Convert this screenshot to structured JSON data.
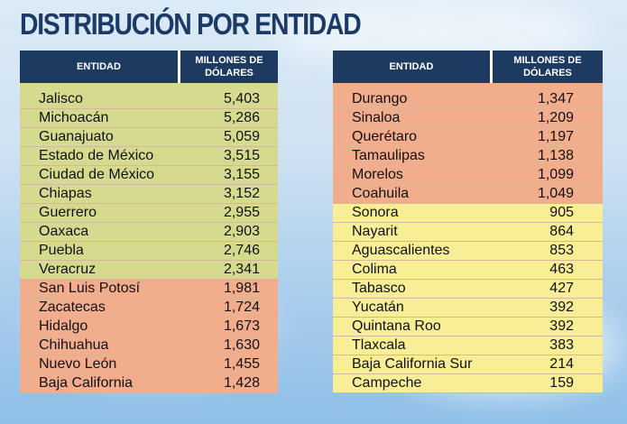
{
  "title": "DISTRIBUCIÓN POR ENTIDAD",
  "header": {
    "state_label": "ENTIDAD",
    "value_label_line1": "MILLONES DE",
    "value_label_line2": "DÓLARES"
  },
  "colors": {
    "header": "#1d3b61",
    "green": "#d6da8e",
    "salmon": "#f2ad8c",
    "yellow": "#f7ee96",
    "title": "#1c3a66"
  },
  "left_rows": [
    {
      "state": "Jalisco",
      "value": "5,403",
      "color": "green"
    },
    {
      "state": "Michoacán",
      "value": "5,286",
      "color": "green"
    },
    {
      "state": "Guanajuato",
      "value": "5,059",
      "color": "green"
    },
    {
      "state": "Estado de México",
      "value": "3,515",
      "color": "green"
    },
    {
      "state": "Ciudad de México",
      "value": "3,155",
      "color": "green"
    },
    {
      "state": "Chiapas",
      "value": "3,152",
      "color": "green"
    },
    {
      "state": "Guerrero",
      "value": "2,955",
      "color": "green"
    },
    {
      "state": "Oaxaca",
      "value": "2,903",
      "color": "green"
    },
    {
      "state": "Puebla",
      "value": "2,746",
      "color": "green"
    },
    {
      "state": "Veracruz",
      "value": "2,341",
      "color": "green"
    },
    {
      "state": "San Luis Potosí",
      "value": "1,981",
      "color": "salmon"
    },
    {
      "state": "Zacatecas",
      "value": "1,724",
      "color": "salmon"
    },
    {
      "state": "Hidalgo",
      "value": "1,673",
      "color": "salmon"
    },
    {
      "state": "Chihuahua",
      "value": "1,630",
      "color": "salmon"
    },
    {
      "state": "Nuevo León",
      "value": "1,455",
      "color": "salmon"
    },
    {
      "state": "Baja California",
      "value": "1,428",
      "color": "salmon"
    }
  ],
  "right_rows": [
    {
      "state": "Durango",
      "value": "1,347",
      "color": "salmon"
    },
    {
      "state": "Sinaloa",
      "value": "1,209",
      "color": "salmon"
    },
    {
      "state": "Querétaro",
      "value": "1,197",
      "color": "salmon"
    },
    {
      "state": "Tamaulipas",
      "value": "1,138",
      "color": "salmon"
    },
    {
      "state": "Morelos",
      "value": "1,099",
      "color": "salmon"
    },
    {
      "state": "Coahuila",
      "value": "1,049",
      "color": "salmon"
    },
    {
      "state": "Sonora",
      "value": "905",
      "color": "yellow"
    },
    {
      "state": "Nayarit",
      "value": "864",
      "color": "yellow"
    },
    {
      "state": "Aguascalientes",
      "value": "853",
      "color": "yellow"
    },
    {
      "state": "Colima",
      "value": "463",
      "color": "yellow"
    },
    {
      "state": "Tabasco",
      "value": "427",
      "color": "yellow"
    },
    {
      "state": "Yucatán",
      "value": "392",
      "color": "yellow"
    },
    {
      "state": "Quintana Roo",
      "value": "392",
      "color": "yellow"
    },
    {
      "state": "Tlaxcala",
      "value": "383",
      "color": "yellow"
    },
    {
      "state": "Baja California Sur",
      "value": "214",
      "color": "yellow"
    },
    {
      "state": "Campeche",
      "value": "159",
      "color": "yellow"
    }
  ]
}
